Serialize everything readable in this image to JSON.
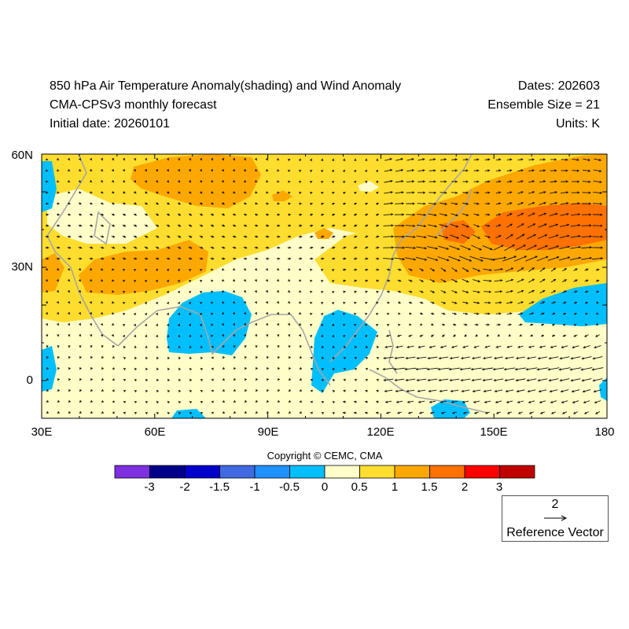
{
  "header": {
    "title": "850 hPa Air Temperature Anomaly(shading) and Wind Anomaly",
    "model": "CMA-CPSv3 monthly forecast",
    "initial_date": "Initial date: 20260101",
    "dates": "Dates: 202603",
    "ensemble": "Ensemble Size = 21",
    "units": "Units: K"
  },
  "map": {
    "lon_range": [
      30,
      180
    ],
    "lat_range": [
      -10,
      60
    ],
    "x_ticks": [
      "30E",
      "60E",
      "90E",
      "120E",
      "150E",
      "180"
    ],
    "y_ticks": [
      "60N",
      "30N",
      "0"
    ],
    "colors": {
      "lt_m3": "#7e2fe0",
      "m3_m2": "#00008b",
      "m2_m15": "#0000cd",
      "m15_m1": "#4169e1",
      "m1_m05": "#1e90ff",
      "m05_0": "#00bfff",
      "p0_05": "#fffdc8",
      "p05_1": "#fedd2e",
      "p1_15": "#fda800",
      "p15_2": "#ff7100",
      "p2_3": "#ff0000",
      "gt3": "#c00000",
      "coast": "#a6a6a6"
    }
  },
  "colorbar": {
    "labels": [
      "-3",
      "-2",
      "-1.5",
      "-1",
      "-0.5",
      "0",
      "0.5",
      "1",
      "1.5",
      "2",
      "3"
    ],
    "colors": [
      "#7e2fe0",
      "#00008b",
      "#0000cd",
      "#4169e1",
      "#1e90ff",
      "#00bfff",
      "#fffdc8",
      "#fedd2e",
      "#fda800",
      "#ff7100",
      "#ff0000",
      "#c00000"
    ]
  },
  "copyright": "Copyright © CEMC, CMA",
  "reference": {
    "magnitude": "2",
    "label": "Reference Vector"
  }
}
